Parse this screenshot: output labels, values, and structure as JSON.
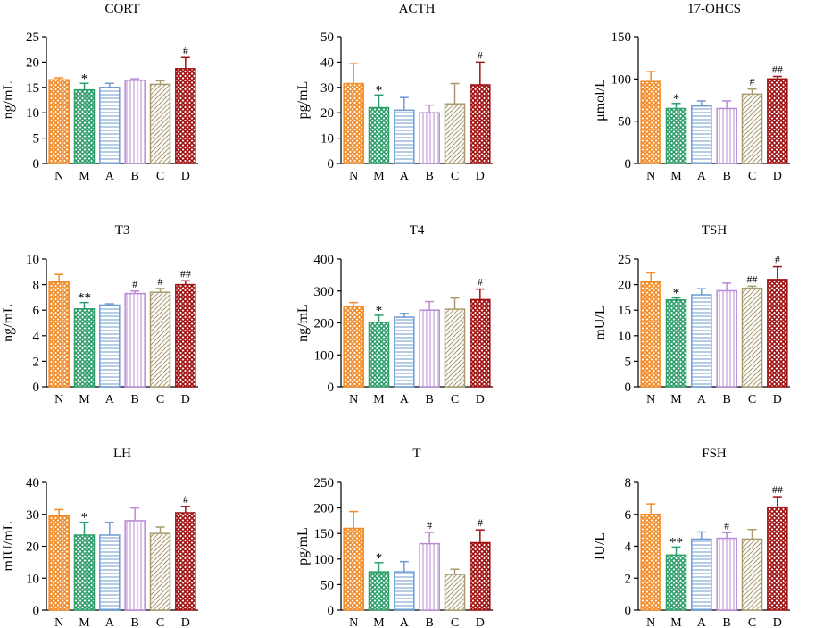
{
  "chart_data": [
    {
      "type": "bar",
      "title": "CORT",
      "ylabel": "ng/mL",
      "ylim": [
        0,
        25
      ],
      "yticks": [
        0,
        5,
        10,
        15,
        20,
        25
      ],
      "categories": [
        "N",
        "M",
        "A",
        "B",
        "C",
        "D"
      ],
      "values": [
        16.5,
        14.5,
        15,
        16.4,
        15.6,
        18.7
      ],
      "errors": [
        0.4,
        1.3,
        0.8,
        0.3,
        0.7,
        2.2
      ],
      "annotations": [
        "",
        "*",
        "",
        "",
        "",
        "#"
      ]
    },
    {
      "type": "bar",
      "title": "ACTH",
      "ylabel": "pg/mL",
      "ylim": [
        0,
        50
      ],
      "yticks": [
        0,
        10,
        20,
        30,
        40,
        50
      ],
      "categories": [
        "N",
        "M",
        "A",
        "B",
        "C",
        "D"
      ],
      "values": [
        31.5,
        22,
        21,
        20,
        23.5,
        31
      ],
      "errors": [
        8,
        5,
        5,
        3,
        8,
        9
      ],
      "annotations": [
        "",
        "*",
        "",
        "",
        "",
        "#"
      ]
    },
    {
      "type": "bar",
      "title": "17-OHCS",
      "ylabel": "μmol/L",
      "ylim": [
        0,
        150
      ],
      "yticks": [
        0,
        50,
        100,
        150
      ],
      "categories": [
        "N",
        "M",
        "A",
        "B",
        "C",
        "D"
      ],
      "values": [
        97,
        65,
        68,
        65,
        82,
        100
      ],
      "errors": [
        12,
        6,
        6,
        9,
        6,
        3
      ],
      "annotations": [
        "",
        "*",
        "",
        "",
        "#",
        "##"
      ]
    },
    {
      "type": "bar",
      "title": "T3",
      "ylabel": "ng/mL",
      "ylim": [
        0,
        10
      ],
      "yticks": [
        0,
        2,
        4,
        6,
        8,
        10
      ],
      "categories": [
        "N",
        "M",
        "A",
        "B",
        "C",
        "D"
      ],
      "values": [
        8.2,
        6.1,
        6.4,
        7.3,
        7.4,
        8.0
      ],
      "errors": [
        0.6,
        0.5,
        0.1,
        0.2,
        0.3,
        0.3
      ],
      "annotations": [
        "",
        "**",
        "",
        "#",
        "#",
        "##"
      ]
    },
    {
      "type": "bar",
      "title": "T4",
      "ylabel": "ng/mL",
      "ylim": [
        0,
        400
      ],
      "yticks": [
        0,
        100,
        200,
        300,
        400
      ],
      "categories": [
        "N",
        "M",
        "A",
        "B",
        "C",
        "D"
      ],
      "values": [
        252,
        202,
        218,
        240,
        243,
        273
      ],
      "errors": [
        12,
        22,
        12,
        27,
        35,
        33
      ],
      "annotations": [
        "",
        "*",
        "",
        "",
        "",
        "#"
      ]
    },
    {
      "type": "bar",
      "title": "TSH",
      "ylabel": "mU/L",
      "ylim": [
        0,
        25
      ],
      "yticks": [
        0,
        5,
        10,
        15,
        20,
        25
      ],
      "categories": [
        "N",
        "M",
        "A",
        "B",
        "C",
        "D"
      ],
      "values": [
        20.5,
        17,
        18,
        18.8,
        19.3,
        21
      ],
      "errors": [
        1.8,
        0.4,
        1.2,
        1.5,
        0.4,
        2.5
      ],
      "annotations": [
        "",
        "*",
        "",
        "",
        "##",
        "#"
      ]
    },
    {
      "type": "bar",
      "title": "LH",
      "ylabel": "mIU/mL",
      "ylim": [
        0,
        40
      ],
      "yticks": [
        0,
        10,
        20,
        30,
        40
      ],
      "categories": [
        "N",
        "M",
        "A",
        "B",
        "C",
        "D"
      ],
      "values": [
        29.5,
        23.5,
        23.5,
        28,
        24,
        30.5
      ],
      "errors": [
        2,
        4,
        4,
        4,
        2,
        2
      ],
      "annotations": [
        "",
        "*",
        "",
        "",
        "",
        "#"
      ]
    },
    {
      "type": "bar",
      "title": "T",
      "ylabel": "pg/mL",
      "ylim": [
        0,
        250
      ],
      "yticks": [
        0,
        50,
        100,
        150,
        200,
        250
      ],
      "categories": [
        "N",
        "M",
        "A",
        "B",
        "C",
        "D"
      ],
      "values": [
        160,
        75,
        75,
        130,
        70,
        132
      ],
      "errors": [
        33,
        18,
        20,
        22,
        10,
        25
      ],
      "annotations": [
        "",
        "*",
        "",
        "#",
        "",
        "#"
      ]
    },
    {
      "type": "bar",
      "title": "FSH",
      "ylabel": "IU/L",
      "ylim": [
        0,
        8
      ],
      "yticks": [
        0,
        2,
        4,
        6,
        8
      ],
      "categories": [
        "N",
        "M",
        "A",
        "B",
        "C",
        "D"
      ],
      "values": [
        6.0,
        3.45,
        4.45,
        4.5,
        4.45,
        6.45
      ],
      "errors": [
        0.65,
        0.5,
        0.45,
        0.35,
        0.6,
        0.65
      ],
      "annotations": [
        "",
        "**",
        "",
        "#",
        "",
        "##"
      ]
    }
  ],
  "bar_colors": [
    "#f28c28",
    "#2e9e6a",
    "#6c9bd2",
    "#b98ad6",
    "#a89a6e",
    "#a01010"
  ],
  "bar_patterns": [
    "checker",
    "checker",
    "h-lines",
    "v-lines",
    "diagonal",
    "checker"
  ]
}
